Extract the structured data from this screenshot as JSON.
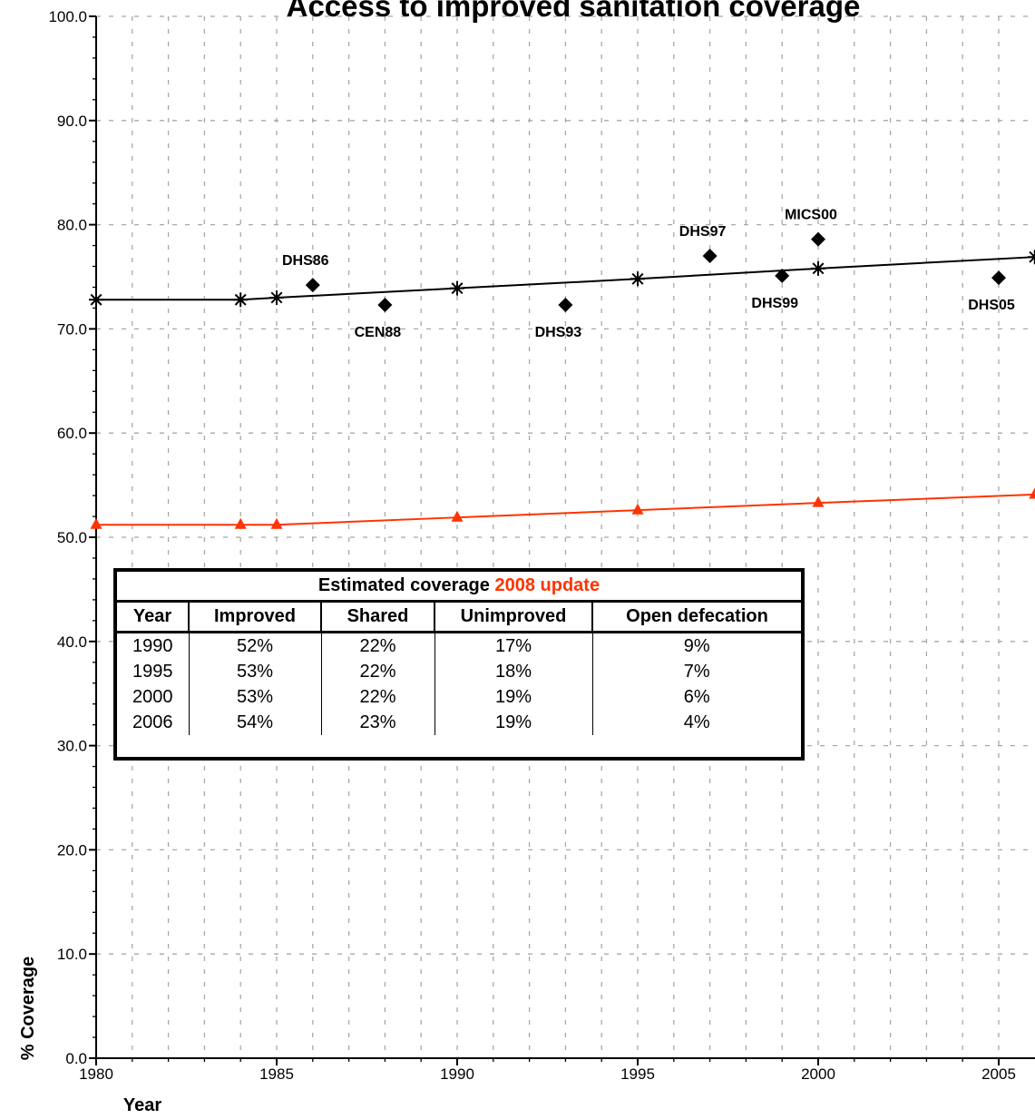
{
  "chart_data": {
    "type": "line",
    "title": "Access to improved sanitation coverage",
    "xlabel": "Year",
    "ylabel": "% Coverage",
    "xlim": [
      1980,
      2006
    ],
    "ylim": [
      0,
      100
    ],
    "x_ticks": [
      1980,
      1985,
      1990,
      1995,
      2000,
      2005
    ],
    "y_ticks": [
      0,
      10,
      20,
      30,
      40,
      50,
      60,
      70,
      80,
      90,
      100
    ],
    "y_tick_labels": [
      "0.0",
      "10.0",
      "20.0",
      "30.0",
      "40.0",
      "50.0",
      "60.0",
      "70.0",
      "80.0",
      "90.0",
      "100.0"
    ],
    "grid": "dashed",
    "series": [
      {
        "marker": "asterisk",
        "color": "#000000",
        "x": [
          1980,
          1984,
          1985,
          1990,
          1995,
          2000,
          2006
        ],
        "y": [
          72.8,
          72.8,
          73.0,
          73.9,
          74.8,
          75.8,
          76.9
        ]
      },
      {
        "marker": "triangle",
        "color": "#ff3300",
        "x": [
          1980,
          1984,
          1985,
          1990,
          1995,
          2000,
          2006
        ],
        "y": [
          51.2,
          51.2,
          51.2,
          51.9,
          52.6,
          53.3,
          54.1
        ]
      },
      {
        "marker": "diamond",
        "color": "#000000",
        "points": [
          {
            "x": 1986,
            "y": 74.2,
            "label": "DHS86",
            "pos": "above"
          },
          {
            "x": 1988,
            "y": 72.3,
            "label": "CEN88",
            "pos": "below"
          },
          {
            "x": 1993,
            "y": 72.3,
            "label": "DHS93",
            "pos": "below"
          },
          {
            "x": 1997,
            "y": 77.0,
            "label": "DHS97",
            "pos": "above"
          },
          {
            "x": 1999,
            "y": 75.1,
            "label": "DHS99",
            "pos": "below"
          },
          {
            "x": 2000,
            "y": 78.6,
            "label": "MICS00",
            "pos": "above"
          },
          {
            "x": 2005,
            "y": 74.9,
            "label": "DHS05",
            "pos": "below"
          }
        ]
      }
    ]
  },
  "table": {
    "caption": "Estimated coverage",
    "caption_highlight": "2008 update",
    "highlight_color": "#ff3300",
    "headers": [
      "Year",
      "Improved",
      "Shared",
      "Unimproved",
      "Open defecation"
    ],
    "rows": [
      [
        "1990",
        "52%",
        "22%",
        "17%",
        "9%"
      ],
      [
        "1995",
        "53%",
        "22%",
        "18%",
        "7%"
      ],
      [
        "2000",
        "53%",
        "22%",
        "19%",
        "6%"
      ],
      [
        "2006",
        "54%",
        "23%",
        "19%",
        "4%"
      ]
    ]
  }
}
